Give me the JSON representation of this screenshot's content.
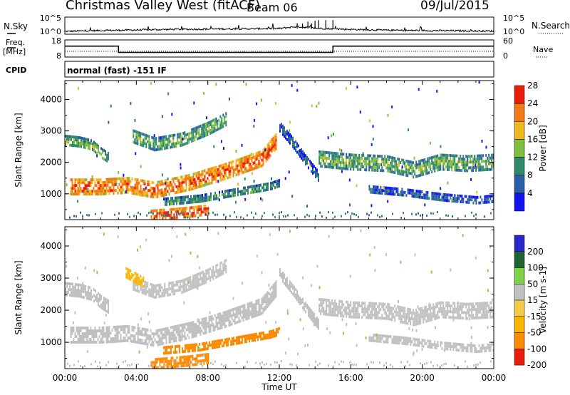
{
  "header": {
    "title": "Christmas Valley West (fitACF)",
    "beam": "Beam 06",
    "date": "09/Jul/2015"
  },
  "status_panel": {
    "nsky_label": "N.Sky",
    "nsearch_label": "N.Search",
    "nsky_ticks": [
      "10^5",
      "10^0"
    ],
    "nsearch_ticks": [
      "10^5",
      "10^0"
    ],
    "freq_label": "Freq.",
    "freq_unit": "[MHz]",
    "freq_ticks": [
      18,
      8
    ],
    "nave_label": "Nave",
    "nave_ticks": [
      60,
      0
    ],
    "cpid_label": "CPID",
    "cpid_text": "normal (fast) -151 IF"
  },
  "chart_data": [
    {
      "type": "line",
      "panel": "N.Sky / N.Search",
      "x": [
        0,
        2,
        4,
        6,
        8,
        10,
        12,
        13,
        14,
        15,
        16,
        18,
        20,
        22,
        24
      ],
      "series": [
        {
          "name": "N.Sky",
          "values": [
            0.5,
            0.8,
            1.0,
            1.2,
            1.3,
            1.4,
            1.5,
            2.2,
            1.6,
            1.4,
            1.2,
            0.9,
            0.8,
            0.7,
            0.6
          ]
        }
      ],
      "ylim": [
        0,
        5
      ],
      "log_scale": true
    },
    {
      "type": "line",
      "panel": "Freq / Nave",
      "x": [
        0,
        3,
        3,
        15,
        15,
        24
      ],
      "series": [
        {
          "name": "Freq.",
          "values": [
            14.5,
            14.5,
            10.5,
            10.5,
            14.5,
            14.5
          ]
        }
      ],
      "ylim": [
        8,
        18
      ]
    },
    {
      "type": "heatmap",
      "panel": "power",
      "xlabel": "",
      "ylabel": "Slant Range [km]",
      "xlim": [
        0,
        24
      ],
      "ylim": [
        180,
        4600
      ],
      "yticks": [
        1000,
        2000,
        3000,
        4000
      ],
      "colorbar": {
        "label": "Power [dB]",
        "ticks": [
          4,
          8,
          12,
          16,
          20,
          24,
          28
        ],
        "colors": [
          "#1414f0",
          "#2a5ea8",
          "#2f8a6a",
          "#7fbf3f",
          "#f0b81e",
          "#f07a14",
          "#e81e0a"
        ]
      },
      "echo_bands": [
        {
          "t": [
            0.0,
            0.8,
            1.5,
            2.0,
            2.4
          ],
          "r": [
            2700,
            2650,
            2550,
            2300,
            2150
          ],
          "w": 180,
          "level": 14
        },
        {
          "t": [
            3.8,
            5.0,
            6.5,
            8.0,
            9.0
          ],
          "r": [
            2850,
            2600,
            2750,
            3100,
            3400
          ],
          "w": 200,
          "level": 14
        },
        {
          "t": [
            0.3,
            2.0,
            3.5,
            5.0,
            7.0,
            9.0,
            11.0,
            11.8
          ],
          "r": [
            1250,
            1250,
            1300,
            1150,
            1400,
            1750,
            2150,
            2700
          ],
          "w": 240,
          "level": 24
        },
        {
          "t": [
            5.5,
            7.5,
            9.5,
            11.5,
            12.0
          ],
          "r": [
            750,
            850,
            1050,
            1250,
            1350
          ],
          "w": 130,
          "level": 12
        },
        {
          "t": [
            12.0,
            12.8,
            13.5,
            14.2
          ],
          "r": [
            3150,
            2600,
            2050,
            1550
          ],
          "w": 160,
          "level": 8
        },
        {
          "t": [
            14.2,
            16.0,
            18.0,
            19.5,
            21.0,
            22.5,
            24.0
          ],
          "r": [
            2150,
            2050,
            2000,
            1800,
            2050,
            2000,
            2050
          ],
          "w": 230,
          "level": 14
        },
        {
          "t": [
            17.0,
            19.0,
            21.0,
            23.0,
            24.0
          ],
          "r": [
            1150,
            1050,
            900,
            800,
            850
          ],
          "w": 130,
          "level": 8
        },
        {
          "t": [
            4.8,
            6.0,
            7.0,
            8.0
          ],
          "r": [
            350,
            400,
            450,
            520
          ],
          "w": 150,
          "level": 26
        }
      ]
    },
    {
      "type": "heatmap",
      "panel": "velocity",
      "xlabel": "Time UT",
      "ylabel": "Slant Range [km]",
      "xlim": [
        0,
        24
      ],
      "ylim": [
        180,
        4600
      ],
      "x_ticks": [
        "00:00",
        "04:00",
        "08:00",
        "12:00",
        "16:00",
        "20:00",
        "00:00"
      ],
      "yticks": [
        1000,
        2000,
        3000,
        4000
      ],
      "colorbar": {
        "label": "Velocity [m s-1]",
        "ticks": [
          200,
          100,
          50,
          15,
          -15,
          -50,
          -100,
          -200
        ],
        "colors": [
          "#2828c8",
          "#1e6432",
          "#7ed24a",
          "#c0c0c0",
          "#f4ca4a",
          "#f7b500",
          "#ff8a00",
          "#e81e0a"
        ]
      },
      "echo_bands": [
        {
          "t": [
            0.0,
            0.8,
            1.5,
            2.0,
            2.4
          ],
          "r": [
            2700,
            2650,
            2550,
            2300,
            2150
          ],
          "w": 180,
          "level": 0
        },
        {
          "t": [
            3.8,
            5.0,
            6.5,
            8.0,
            9.0
          ],
          "r": [
            2850,
            2600,
            2750,
            3100,
            3400
          ],
          "w": 200,
          "level": 0
        },
        {
          "t": [
            3.4,
            3.9,
            4.4
          ],
          "r": [
            3200,
            3050,
            2900
          ],
          "w": 140,
          "level": -40
        },
        {
          "t": [
            0.3,
            2.0,
            3.5,
            5.0,
            7.0,
            9.0,
            11.0,
            11.8
          ],
          "r": [
            1250,
            1250,
            1300,
            1150,
            1400,
            1750,
            2150,
            2700
          ],
          "w": 240,
          "level": 0
        },
        {
          "t": [
            5.5,
            7.5,
            9.5,
            11.5,
            12.0
          ],
          "r": [
            750,
            850,
            1050,
            1250,
            1350
          ],
          "w": 130,
          "level": -60
        },
        {
          "t": [
            12.0,
            12.8,
            13.5,
            14.2
          ],
          "r": [
            3150,
            2600,
            2050,
            1550
          ],
          "w": 160,
          "level": 0
        },
        {
          "t": [
            14.2,
            16.0,
            18.0,
            19.5,
            21.0,
            22.5,
            24.0
          ],
          "r": [
            2150,
            2050,
            2000,
            1800,
            2050,
            2000,
            2050
          ],
          "w": 230,
          "level": 0
        },
        {
          "t": [
            17.0,
            19.0,
            21.0,
            23.0,
            24.0
          ],
          "r": [
            1150,
            1050,
            900,
            800,
            850
          ],
          "w": 130,
          "level": 0
        },
        {
          "t": [
            4.8,
            6.0,
            7.0,
            8.0
          ],
          "r": [
            350,
            400,
            450,
            520
          ],
          "w": 150,
          "level": -60
        }
      ]
    }
  ]
}
